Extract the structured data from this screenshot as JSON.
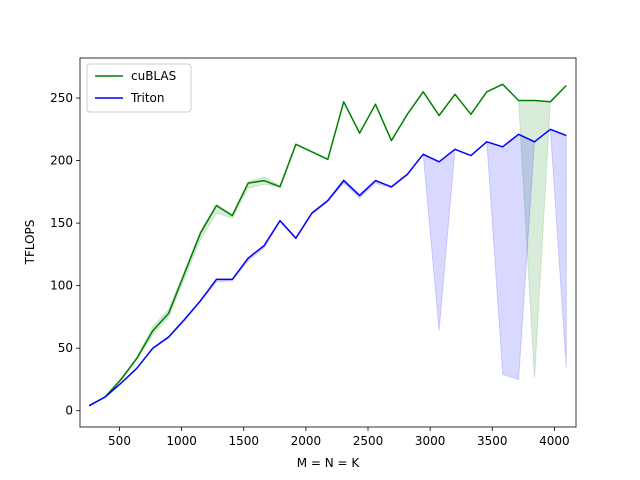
{
  "chart_data": {
    "type": "line",
    "title": "",
    "xlabel": "M = N = K",
    "ylabel": "TFLOPS",
    "xlim": [
      182,
      4174
    ],
    "ylim": [
      -13,
      282
    ],
    "xticks": [
      500,
      1000,
      1500,
      2000,
      2500,
      3000,
      3500,
      4000
    ],
    "yticks": [
      0,
      50,
      100,
      150,
      200,
      250
    ],
    "grid": false,
    "legend_position": "upper-left",
    "x": [
      256,
      384,
      512,
      640,
      768,
      896,
      1024,
      1152,
      1280,
      1408,
      1536,
      1664,
      1792,
      1920,
      2048,
      2176,
      2304,
      2432,
      2560,
      2688,
      2816,
      2944,
      3072,
      3200,
      3328,
      3456,
      3584,
      3712,
      3840,
      3968,
      4096
    ],
    "series": [
      {
        "name": "cuBLAS",
        "color": "#008000",
        "values": [
          4,
          11,
          25,
          42,
          64,
          78,
          110,
          142,
          164,
          156,
          182,
          184,
          179,
          213,
          207,
          201,
          247,
          222,
          245,
          216,
          237,
          255,
          236,
          253,
          237,
          255,
          261,
          248,
          248,
          247,
          260
        ],
        "band_low": [
          4,
          11,
          24,
          41,
          61,
          75,
          106,
          137,
          158,
          154,
          178,
          181,
          179,
          213,
          207,
          201,
          247,
          222,
          245,
          216,
          237,
          255,
          236,
          253,
          237,
          255,
          261,
          248,
          26,
          247,
          260
        ],
        "band_high": [
          4,
          11,
          26,
          43,
          67,
          81,
          112,
          144,
          165,
          157,
          183,
          187,
          180,
          213,
          207,
          201,
          247,
          222,
          245,
          216,
          237,
          255,
          236,
          253,
          237,
          255,
          261,
          248,
          248,
          247,
          260
        ]
      },
      {
        "name": "Triton",
        "color": "#0000ff",
        "values": [
          4,
          11,
          22,
          34,
          50,
          59,
          73,
          88,
          105,
          105,
          122,
          132,
          152,
          138,
          158,
          168,
          184,
          172,
          184,
          179,
          189,
          205,
          199,
          209,
          204,
          215,
          211,
          221,
          215,
          225,
          220
        ],
        "band_low": [
          4,
          11,
          22,
          34,
          49,
          58,
          72,
          87,
          103,
          104,
          120,
          130,
          151,
          137,
          157,
          167,
          182,
          170,
          182,
          178,
          188,
          205,
          64,
          209,
          204,
          215,
          29,
          25,
          215,
          225,
          34
        ],
        "band_high": [
          4,
          11,
          22,
          34,
          50,
          59,
          73,
          88,
          105,
          105,
          122,
          132,
          152,
          138,
          158,
          168,
          185,
          173,
          184,
          179,
          189,
          205,
          199,
          209,
          204,
          215,
          211,
          221,
          215,
          225,
          220
        ]
      }
    ]
  }
}
